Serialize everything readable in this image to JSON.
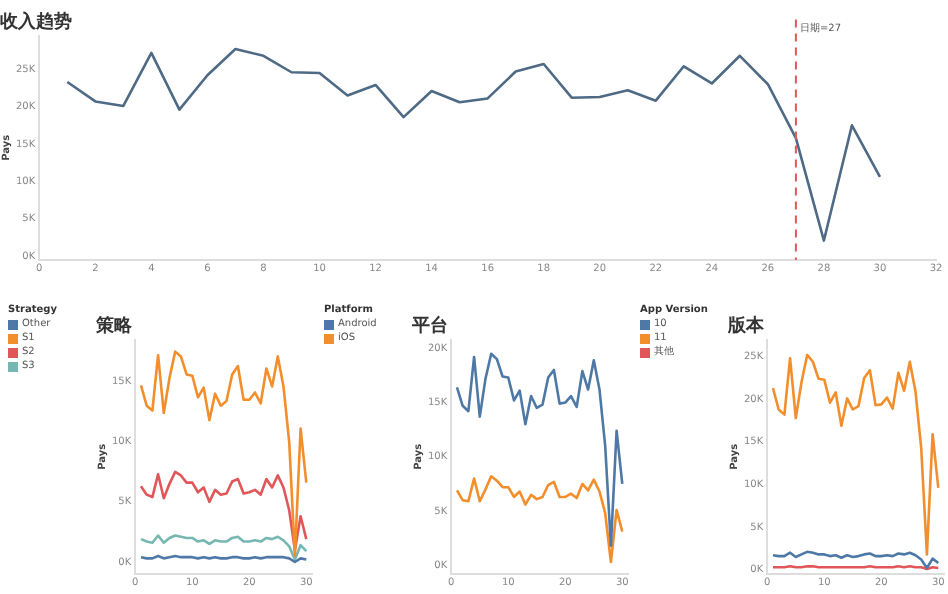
{
  "chart_data": [
    {
      "type": "line",
      "title": "收入趋势",
      "ylabel": "Pays",
      "x": [
        1,
        2,
        3,
        4,
        5,
        6,
        7,
        8,
        9,
        10,
        11,
        12,
        13,
        14,
        15,
        16,
        17,
        18,
        19,
        20,
        21,
        22,
        23,
        24,
        25,
        26,
        27,
        28,
        29,
        30
      ],
      "series": [
        {
          "color": "#4e6a85",
          "values": [
            23300,
            20700,
            20100,
            27200,
            19600,
            24200,
            27700,
            26800,
            24600,
            24500,
            21500,
            22900,
            18600,
            22100,
            20600,
            21100,
            24700,
            25700,
            21200,
            21300,
            22200,
            20800,
            25400,
            23100,
            26800,
            23000,
            15800,
            2100,
            17500,
            10600
          ]
        }
      ],
      "xlim": [
        0,
        32
      ],
      "xticks": [
        0,
        2,
        4,
        6,
        8,
        10,
        12,
        14,
        16,
        18,
        20,
        22,
        24,
        26,
        28,
        30,
        32
      ],
      "ylim": [
        -500,
        29500
      ],
      "yticks": [
        {
          "value": 0,
          "label": "0K"
        },
        {
          "value": 5000,
          "label": "5K"
        },
        {
          "value": 10000,
          "label": "10K"
        },
        {
          "value": 15000,
          "label": "15K"
        },
        {
          "value": 20000,
          "label": "20K"
        },
        {
          "value": 25000,
          "label": "25K"
        }
      ],
      "ref_lines": [
        {
          "axis": "x",
          "value": 27,
          "label": "日期=27",
          "color": "#e15759",
          "line_style": "dashed"
        }
      ],
      "grid": false,
      "marker": "none",
      "line_style": "solid"
    },
    {
      "type": "line",
      "title": "策略",
      "ylabel": "Pays",
      "legend_title": "Strategy",
      "x": [
        1,
        2,
        3,
        4,
        5,
        6,
        7,
        8,
        9,
        10,
        11,
        12,
        13,
        14,
        15,
        16,
        17,
        18,
        19,
        20,
        21,
        22,
        23,
        24,
        25,
        26,
        27,
        28,
        29,
        30
      ],
      "series": [
        {
          "name": "Other",
          "color": "#4e79a7",
          "values": [
            400,
            300,
            300,
            500,
            300,
            400,
            500,
            400,
            400,
            400,
            300,
            400,
            300,
            400,
            300,
            300,
            400,
            400,
            300,
            300,
            400,
            300,
            400,
            400,
            400,
            400,
            300,
            0,
            300,
            200
          ]
        },
        {
          "name": "S1",
          "color": "#f28e2b",
          "values": [
            14700,
            13000,
            12600,
            17200,
            12400,
            15300,
            17500,
            17100,
            15600,
            15500,
            13700,
            14500,
            11800,
            14000,
            13000,
            13400,
            15600,
            16300,
            13500,
            13500,
            14100,
            13200,
            16100,
            14600,
            17100,
            14600,
            10000,
            500,
            11100,
            6600
          ]
        },
        {
          "name": "S2",
          "color": "#e15759",
          "values": [
            6300,
            5600,
            5400,
            7300,
            5300,
            6500,
            7500,
            7200,
            6600,
            6600,
            5800,
            6200,
            5000,
            6000,
            5600,
            5700,
            6700,
            6900,
            5700,
            5800,
            6000,
            5600,
            6900,
            6200,
            7200,
            6200,
            4300,
            1000,
            3800,
            1900
          ]
        },
        {
          "name": "S3",
          "color": "#76b7b2",
          "values": [
            1900,
            1700,
            1600,
            2200,
            1600,
            2000,
            2200,
            2100,
            2000,
            2000,
            1700,
            1800,
            1500,
            1800,
            1700,
            1700,
            2000,
            2100,
            1700,
            1700,
            1800,
            1700,
            2000,
            1900,
            2100,
            1800,
            1300,
            200,
            1400,
            900
          ]
        }
      ],
      "xlim": [
        0,
        31
      ],
      "xticks": [
        0,
        10,
        20,
        30
      ],
      "ylim": [
        -1000,
        18500
      ],
      "yticks": [
        {
          "value": 0,
          "label": "0K"
        },
        {
          "value": 5000,
          "label": "5K"
        },
        {
          "value": 10000,
          "label": "10K"
        },
        {
          "value": 15000,
          "label": "15K"
        }
      ],
      "grid": false,
      "legend": "left",
      "marker": "none",
      "line_style": "solid"
    },
    {
      "type": "line",
      "title": "平台",
      "ylabel": "Pays",
      "legend_title": "Platform",
      "x": [
        1,
        2,
        3,
        4,
        5,
        6,
        7,
        8,
        9,
        10,
        11,
        12,
        13,
        14,
        15,
        16,
        17,
        18,
        19,
        20,
        21,
        22,
        23,
        24,
        25,
        26,
        27,
        28,
        29,
        30
      ],
      "series": [
        {
          "name": "Android",
          "color": "#4e79a7",
          "values": [
            16400,
            14700,
            14200,
            19200,
            13700,
            17200,
            19500,
            19000,
            17400,
            17300,
            15200,
            16100,
            13000,
            15600,
            14500,
            14800,
            17300,
            18000,
            14900,
            15000,
            15600,
            14600,
            17900,
            16200,
            18900,
            16200,
            11000,
            1800,
            12400,
            7500
          ]
        },
        {
          "name": "iOS",
          "color": "#f28e2b",
          "values": [
            6900,
            6000,
            5900,
            8000,
            5900,
            7000,
            8200,
            7800,
            7200,
            7200,
            6300,
            6800,
            5600,
            6500,
            6100,
            6300,
            7400,
            7700,
            6300,
            6300,
            6600,
            6200,
            7500,
            6900,
            7900,
            6800,
            4800,
            300,
            5100,
            3100
          ]
        }
      ],
      "xlim": [
        0,
        31
      ],
      "xticks": [
        0,
        10,
        20,
        30
      ],
      "ylim": [
        -800,
        20800
      ],
      "yticks": [
        {
          "value": 0,
          "label": "0K"
        },
        {
          "value": 5000,
          "label": "5K"
        },
        {
          "value": 10000,
          "label": "10K"
        },
        {
          "value": 15000,
          "label": "15K"
        },
        {
          "value": 20000,
          "label": "20K"
        }
      ],
      "grid": false,
      "legend": "left",
      "marker": "none",
      "line_style": "solid"
    },
    {
      "type": "line",
      "title": "版本",
      "ylabel": "Pays",
      "legend_title": "App Version",
      "x": [
        1,
        2,
        3,
        4,
        5,
        6,
        7,
        8,
        9,
        10,
        11,
        12,
        13,
        14,
        15,
        16,
        17,
        18,
        19,
        20,
        21,
        22,
        23,
        24,
        25,
        26,
        27,
        28,
        29,
        30
      ],
      "series": [
        {
          "name": "10",
          "color": "#4e79a7",
          "values": [
            1700,
            1600,
            1600,
            2000,
            1500,
            1800,
            2100,
            2000,
            1800,
            1800,
            1600,
            1700,
            1400,
            1700,
            1500,
            1600,
            1800,
            1900,
            1600,
            1600,
            1700,
            1600,
            1900,
            1800,
            2000,
            1700,
            1200,
            200,
            1300,
            800
          ]
        },
        {
          "name": "11",
          "color": "#f28e2b",
          "values": [
            21300,
            18800,
            18200,
            24800,
            17800,
            22000,
            25200,
            24400,
            22400,
            22300,
            19600,
            20800,
            16900,
            20100,
            18800,
            19200,
            22500,
            23400,
            19300,
            19400,
            20200,
            18900,
            23100,
            21000,
            24400,
            20900,
            14300,
            1800,
            15900,
            9600
          ]
        },
        {
          "name": "其他",
          "color": "#e15759",
          "values": [
            300,
            300,
            300,
            400,
            300,
            300,
            400,
            400,
            300,
            300,
            300,
            300,
            300,
            300,
            300,
            300,
            300,
            400,
            300,
            300,
            300,
            300,
            400,
            300,
            400,
            300,
            300,
            100,
            300,
            200
          ]
        }
      ],
      "xlim": [
        0,
        31
      ],
      "xticks": [
        0,
        10,
        20,
        30
      ],
      "ylim": [
        -500,
        27000
      ],
      "yticks": [
        {
          "value": 0,
          "label": "0K"
        },
        {
          "value": 5000,
          "label": "5K"
        },
        {
          "value": 10000,
          "label": "10K"
        },
        {
          "value": 15000,
          "label": "15K"
        },
        {
          "value": 20000,
          "label": "20K"
        },
        {
          "value": 25000,
          "label": "25K"
        }
      ],
      "grid": false,
      "legend": "left",
      "marker": "none",
      "line_style": "solid"
    }
  ]
}
